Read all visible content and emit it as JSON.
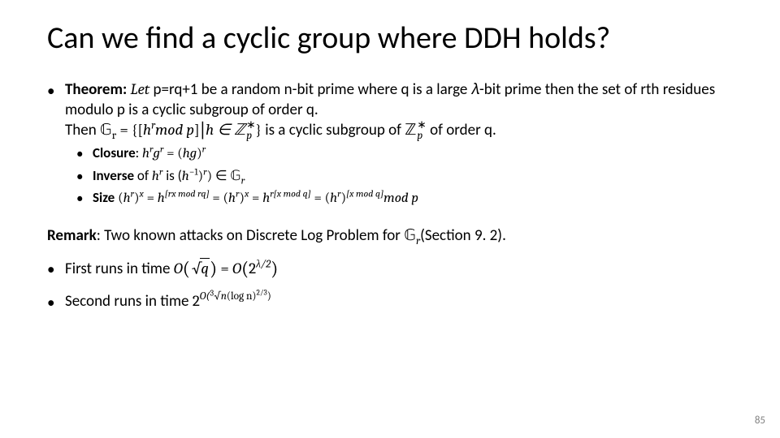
{
  "colors": {
    "bg": "#ffffff",
    "text": "#000000",
    "pagenum": "#808080"
  },
  "fonts": {
    "body": "Calibri",
    "math": "Cambria Math",
    "title_size": 38,
    "body_size": 19,
    "sub_size": 17
  },
  "title": "Can we find a cyclic group where DDH holds?",
  "theorem": {
    "label": "Theorem:",
    "line1_a": " p=rq+1 be a random n-bit prime where q is a large ",
    "let": "Let",
    "line1_b": "-bit prime then the set of rth residues modulo p is a cyclic subgroup of order q.",
    "line2_then": "Then ",
    "line2_mid": " is a cyclic subgroup of ",
    "line2_end": " of order q.",
    "Gr_set": "𝔾",
    "Gr_sub": "r",
    "set_open": " = {",
    "set_close": "}",
    "bracket_open": "[",
    "bracket_close": "]",
    "hr_modp": "h",
    "modp": "mod p",
    "bar": "|",
    "hin": "h ∈ ℤ",
    "Zp_sub": "p",
    "star": "∗"
  },
  "closure": {
    "label": "Closure",
    "colon": ": ",
    "expr_lhs_h": "h",
    "expr_lhs_g": "g",
    "eq": " = (",
    "expr_rhs_hg": "hg",
    "close": ")"
  },
  "inverse": {
    "label": "Inverse",
    "of": " of ",
    "h": "h",
    "is": " is (",
    "hinv": "h",
    "neg1": "−1",
    "close_in": ") ∈ 𝔾",
    "Gr_sub": "r"
  },
  "size": {
    "label": "Size",
    "sp": " ",
    "lpar": "(",
    "rpar": ")",
    "h": "h",
    "eq": " = ",
    "exp1": "[rx mod rq]",
    "exp2": "r",
    "exp3": "x",
    "exp4": "r[x mod q]",
    "exp5": "[x mod q]",
    "modp": "mod p"
  },
  "remark": {
    "label": "Remark",
    "text_a": ": Two known attacks on Discrete Log Problem for ",
    "G": "𝔾",
    "Gr_sub": "r",
    "text_b": "(Section 9. 2)."
  },
  "attacks": {
    "first_a": "First runs in time ",
    "O": "O",
    "sqrt_q": "q",
    "eq": " = ",
    "two": "2",
    "lam_half": "λ/2",
    "second_a": "Second runs in time ",
    "exp2_prefix": "O(",
    "cube3": "3",
    "sqrt_n": "n",
    "logn": "(log n)",
    "twothirds": "2/3",
    "exp2_close": ")"
  },
  "page": "85"
}
